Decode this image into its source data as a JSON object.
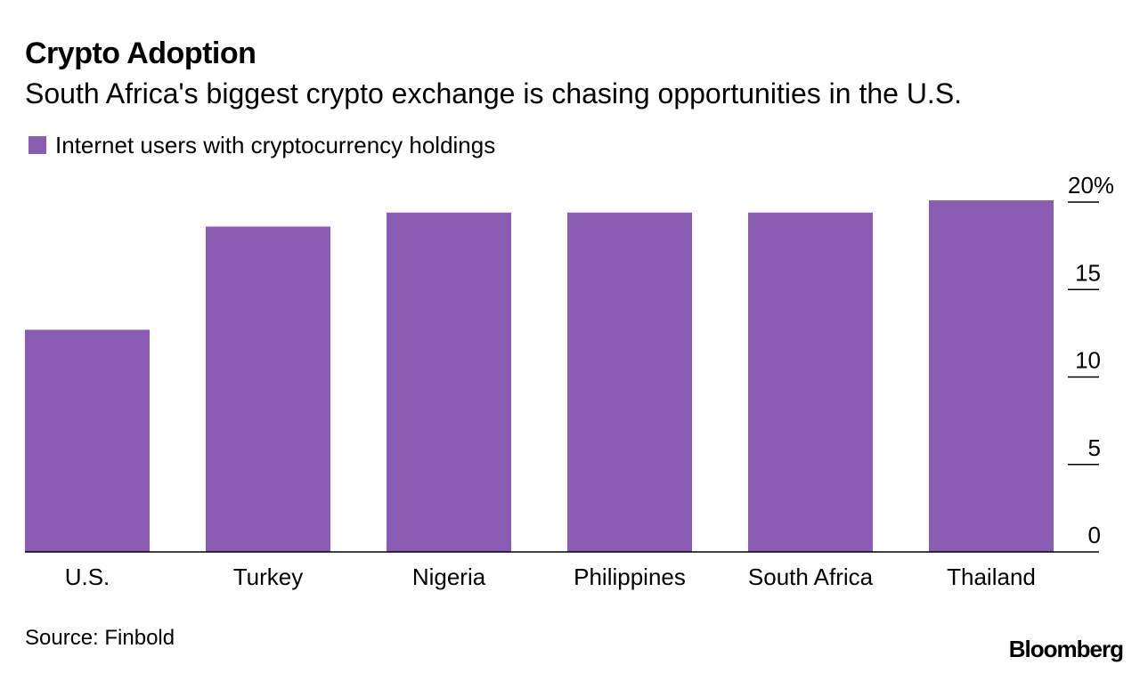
{
  "chart_data": {
    "type": "bar",
    "title": "Crypto Adoption",
    "subtitle": "South Africa's biggest crypto exchange is chasing opportunities in the U.S.",
    "categories": [
      "U.S.",
      "Turkey",
      "Nigeria",
      "Philippines",
      "South Africa",
      "Thailand"
    ],
    "series": [
      {
        "name": "Internet users with cryptocurrency holdings",
        "values": [
          12.7,
          18.6,
          19.4,
          19.4,
          19.4,
          20.1
        ]
      }
    ],
    "ylim": [
      0,
      20
    ],
    "yticks": [
      {
        "value": 0,
        "label": "0"
      },
      {
        "value": 5,
        "label": "5"
      },
      {
        "value": 10,
        "label": "10"
      },
      {
        "value": 15,
        "label": "15"
      },
      {
        "value": 20,
        "label": "20%"
      }
    ],
    "y_axis_position": "right",
    "legend_position": "top-left",
    "grid": false,
    "bar_color": "#8a5cb4"
  },
  "footer": {
    "source": "Source: Finbold",
    "brand": "Bloomberg"
  }
}
